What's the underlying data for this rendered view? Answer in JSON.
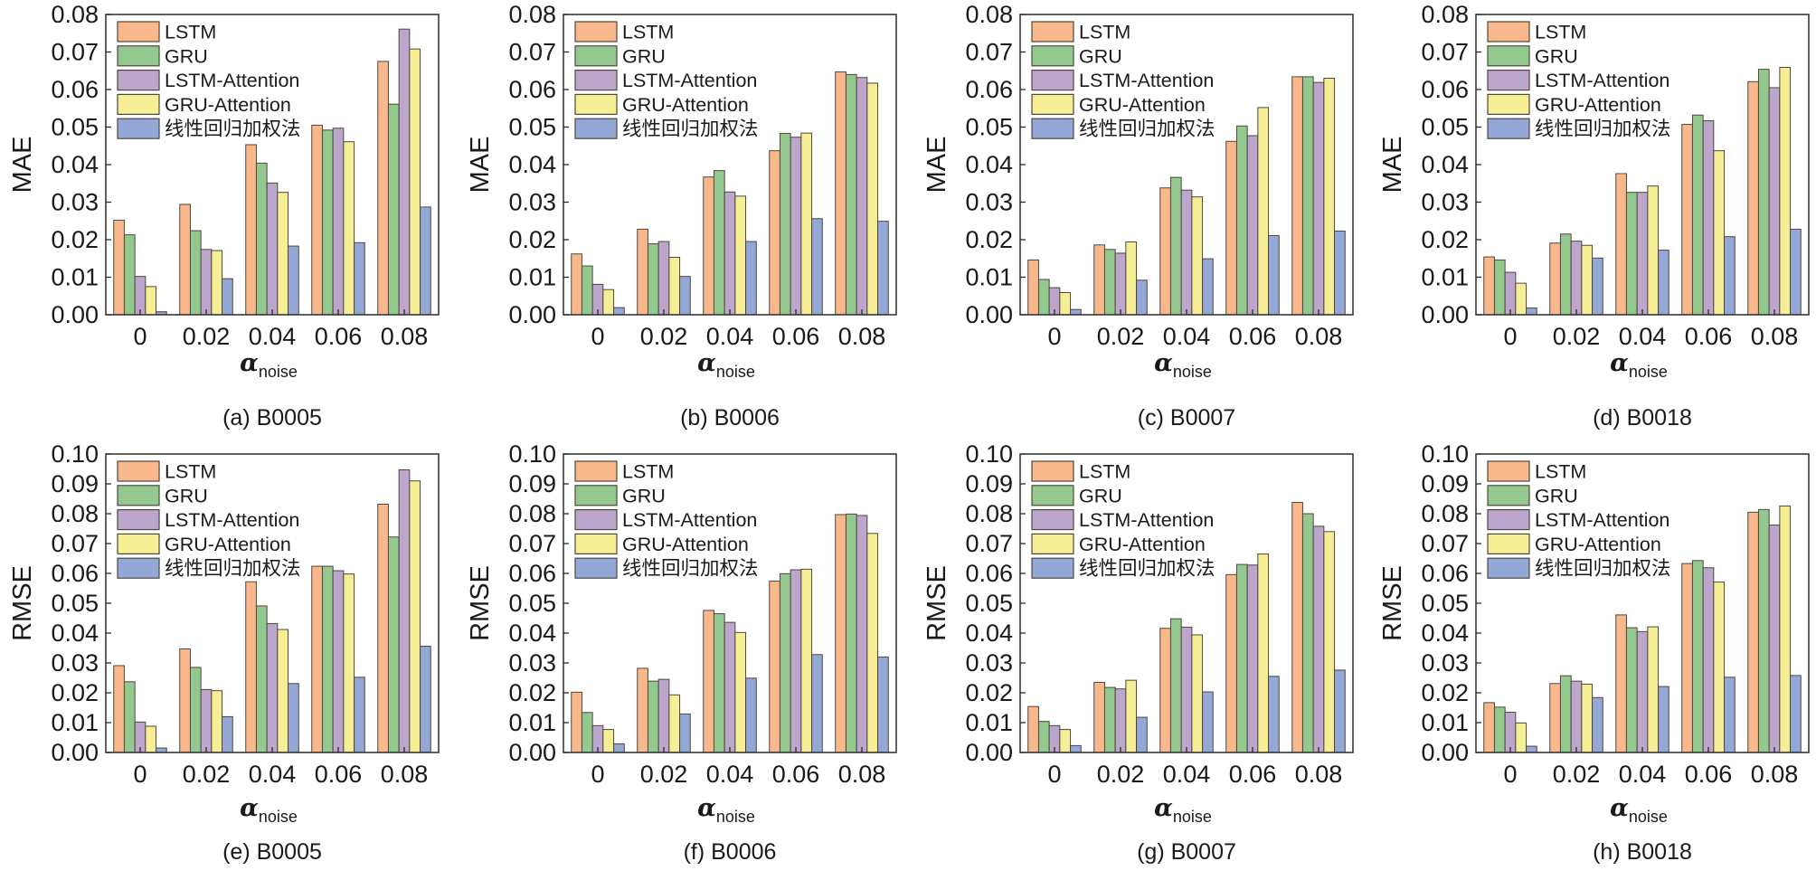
{
  "chart_data": [
    {
      "type": "bar",
      "panel_id": "a",
      "caption": "(a) B0005",
      "title": "",
      "ylabel": "MAE",
      "xlabel": {
        "symbol": "α",
        "subscript": "noise"
      },
      "ylim": [
        0,
        0.08
      ],
      "yticks": [
        "0.00",
        "0.01",
        "0.02",
        "0.03",
        "0.04",
        "0.05",
        "0.06",
        "0.07",
        "0.08"
      ],
      "categories": [
        "0",
        "0.02",
        "0.04",
        "0.06",
        "0.08"
      ],
      "legend_position": "top-left",
      "grid": false,
      "series": [
        {
          "name": "LSTM",
          "color": "#F8B88B",
          "values": [
            0.0252,
            0.0294,
            0.0453,
            0.0505,
            0.0675
          ]
        },
        {
          "name": "GRU",
          "color": "#93C98E",
          "values": [
            0.0213,
            0.0224,
            0.0404,
            0.0492,
            0.0561
          ]
        },
        {
          "name": "LSTM-Attention",
          "color": "#BCA6CC",
          "values": [
            0.0102,
            0.0174,
            0.0351,
            0.0497,
            0.0761
          ]
        },
        {
          "name": "GRU-Attention",
          "color": "#F6EE94",
          "values": [
            0.0075,
            0.0171,
            0.0326,
            0.0461,
            0.0708
          ]
        },
        {
          "name": "线性回归加权法",
          "color": "#93A8D6",
          "values": [
            0.0008,
            0.0096,
            0.0183,
            0.0192,
            0.0287
          ]
        }
      ]
    },
    {
      "type": "bar",
      "panel_id": "b",
      "caption": "(b) B0006",
      "title": "",
      "ylabel": "MAE",
      "xlabel": {
        "symbol": "α",
        "subscript": "noise"
      },
      "ylim": [
        0,
        0.08
      ],
      "yticks": [
        "0.00",
        "0.01",
        "0.02",
        "0.03",
        "0.04",
        "0.05",
        "0.06",
        "0.07",
        "0.08"
      ],
      "categories": [
        "0",
        "0.02",
        "0.04",
        "0.06",
        "0.08"
      ],
      "legend_position": "top-left",
      "grid": false,
      "series": [
        {
          "name": "LSTM",
          "color": "#F8B88B",
          "values": [
            0.0162,
            0.0228,
            0.0367,
            0.0437,
            0.0647
          ]
        },
        {
          "name": "GRU",
          "color": "#93C98E",
          "values": [
            0.013,
            0.0189,
            0.0384,
            0.0483,
            0.064
          ]
        },
        {
          "name": "LSTM-Attention",
          "color": "#BCA6CC",
          "values": [
            0.0081,
            0.0195,
            0.0327,
            0.0473,
            0.0632
          ]
        },
        {
          "name": "GRU-Attention",
          "color": "#F6EE94",
          "values": [
            0.0067,
            0.0153,
            0.0316,
            0.0484,
            0.0617
          ]
        },
        {
          "name": "线性回归加权法",
          "color": "#93A8D6",
          "values": [
            0.0019,
            0.0102,
            0.0195,
            0.0256,
            0.0249
          ]
        }
      ]
    },
    {
      "type": "bar",
      "panel_id": "c",
      "caption": "(c) B0007",
      "title": "",
      "ylabel": "MAE",
      "xlabel": {
        "symbol": "α",
        "subscript": "noise"
      },
      "ylim": [
        0,
        0.08
      ],
      "yticks": [
        "0.00",
        "0.01",
        "0.02",
        "0.03",
        "0.04",
        "0.05",
        "0.06",
        "0.07",
        "0.08"
      ],
      "categories": [
        "0",
        "0.02",
        "0.04",
        "0.06",
        "0.08"
      ],
      "legend_position": "top-left",
      "grid": false,
      "series": [
        {
          "name": "LSTM",
          "color": "#F8B88B",
          "values": [
            0.0146,
            0.0186,
            0.0338,
            0.0462,
            0.0634
          ]
        },
        {
          "name": "GRU",
          "color": "#93C98E",
          "values": [
            0.0094,
            0.0174,
            0.0366,
            0.0503,
            0.0634
          ]
        },
        {
          "name": "LSTM-Attention",
          "color": "#BCA6CC",
          "values": [
            0.0072,
            0.0164,
            0.0332,
            0.0477,
            0.0619
          ]
        },
        {
          "name": "GRU-Attention",
          "color": "#F6EE94",
          "values": [
            0.0059,
            0.0194,
            0.0314,
            0.0552,
            0.063
          ]
        },
        {
          "name": "线性回归加权法",
          "color": "#93A8D6",
          "values": [
            0.0014,
            0.0092,
            0.0149,
            0.0211,
            0.0223
          ]
        }
      ]
    },
    {
      "type": "bar",
      "panel_id": "d",
      "caption": "(d) B0018",
      "title": "",
      "ylabel": "MAE",
      "xlabel": {
        "symbol": "α",
        "subscript": "noise"
      },
      "ylim": [
        0,
        0.08
      ],
      "yticks": [
        "0.00",
        "0.01",
        "0.02",
        "0.03",
        "0.04",
        "0.05",
        "0.06",
        "0.07",
        "0.08"
      ],
      "categories": [
        "0",
        "0.02",
        "0.04",
        "0.06",
        "0.08"
      ],
      "legend_position": "top-left",
      "grid": false,
      "series": [
        {
          "name": "LSTM",
          "color": "#F8B88B",
          "values": [
            0.0154,
            0.0191,
            0.0376,
            0.0507,
            0.0621
          ]
        },
        {
          "name": "GRU",
          "color": "#93C98E",
          "values": [
            0.0146,
            0.0215,
            0.0326,
            0.0532,
            0.0654
          ]
        },
        {
          "name": "LSTM-Attention",
          "color": "#BCA6CC",
          "values": [
            0.0113,
            0.0196,
            0.0326,
            0.0517,
            0.0605
          ]
        },
        {
          "name": "GRU-Attention",
          "color": "#F6EE94",
          "values": [
            0.0084,
            0.0185,
            0.0343,
            0.0437,
            0.0659
          ]
        },
        {
          "name": "线性回归加权法",
          "color": "#93A8D6",
          "values": [
            0.0018,
            0.0151,
            0.0172,
            0.0208,
            0.0228
          ]
        }
      ]
    },
    {
      "type": "bar",
      "panel_id": "e",
      "caption": "(e) B0005",
      "title": "",
      "ylabel": "RMSE",
      "xlabel": {
        "symbol": "α",
        "subscript": "noise"
      },
      "ylim": [
        0,
        0.1
      ],
      "yticks": [
        "0.00",
        "0.01",
        "0.02",
        "0.03",
        "0.04",
        "0.05",
        "0.06",
        "0.07",
        "0.08",
        "0.09",
        "0.10"
      ],
      "categories": [
        "0",
        "0.02",
        "0.04",
        "0.06",
        "0.08"
      ],
      "legend_position": "top-left",
      "grid": false,
      "series": [
        {
          "name": "LSTM",
          "color": "#F8B88B",
          "values": [
            0.0291,
            0.0347,
            0.0572,
            0.0624,
            0.0832
          ]
        },
        {
          "name": "GRU",
          "color": "#93C98E",
          "values": [
            0.0237,
            0.0285,
            0.0491,
            0.0624,
            0.0722
          ]
        },
        {
          "name": "LSTM-Attention",
          "color": "#BCA6CC",
          "values": [
            0.0102,
            0.0211,
            0.0432,
            0.0609,
            0.0947
          ]
        },
        {
          "name": "GRU-Attention",
          "color": "#F6EE94",
          "values": [
            0.0088,
            0.0207,
            0.0412,
            0.0598,
            0.091
          ]
        },
        {
          "name": "线性回归加权法",
          "color": "#93A8D6",
          "values": [
            0.0015,
            0.012,
            0.0231,
            0.0252,
            0.0356
          ]
        }
      ]
    },
    {
      "type": "bar",
      "panel_id": "f",
      "caption": "(f) B0006",
      "title": "",
      "ylabel": "RMSE",
      "xlabel": {
        "symbol": "α",
        "subscript": "noise"
      },
      "ylim": [
        0,
        0.1
      ],
      "yticks": [
        "0.00",
        "0.01",
        "0.02",
        "0.03",
        "0.04",
        "0.05",
        "0.06",
        "0.07",
        "0.08",
        "0.09",
        "0.10"
      ],
      "categories": [
        "0",
        "0.02",
        "0.04",
        "0.06",
        "0.08"
      ],
      "legend_position": "top-left",
      "grid": false,
      "series": [
        {
          "name": "LSTM",
          "color": "#F8B88B",
          "values": [
            0.0202,
            0.0282,
            0.0476,
            0.0574,
            0.0797
          ]
        },
        {
          "name": "GRU",
          "color": "#93C98E",
          "values": [
            0.0134,
            0.0239,
            0.0465,
            0.0599,
            0.0799
          ]
        },
        {
          "name": "LSTM-Attention",
          "color": "#BCA6CC",
          "values": [
            0.009,
            0.0245,
            0.0436,
            0.0612,
            0.0794
          ]
        },
        {
          "name": "GRU-Attention",
          "color": "#F6EE94",
          "values": [
            0.0077,
            0.0193,
            0.0402,
            0.0614,
            0.0734
          ]
        },
        {
          "name": "线性回归加权法",
          "color": "#93A8D6",
          "values": [
            0.0029,
            0.0129,
            0.0249,
            0.0328,
            0.032
          ]
        }
      ]
    },
    {
      "type": "bar",
      "panel_id": "g",
      "caption": "(g) B0007",
      "title": "",
      "ylabel": "RMSE",
      "xlabel": {
        "symbol": "α",
        "subscript": "noise"
      },
      "ylim": [
        0,
        0.1
      ],
      "yticks": [
        "0.00",
        "0.01",
        "0.02",
        "0.03",
        "0.04",
        "0.05",
        "0.06",
        "0.07",
        "0.08",
        "0.09",
        "0.10"
      ],
      "categories": [
        "0",
        "0.02",
        "0.04",
        "0.06",
        "0.08"
      ],
      "legend_position": "top-left",
      "grid": false,
      "series": [
        {
          "name": "LSTM",
          "color": "#F8B88B",
          "values": [
            0.0154,
            0.0235,
            0.0416,
            0.0596,
            0.0838
          ]
        },
        {
          "name": "GRU",
          "color": "#93C98E",
          "values": [
            0.0104,
            0.0218,
            0.0448,
            0.063,
            0.08
          ]
        },
        {
          "name": "LSTM-Attention",
          "color": "#BCA6CC",
          "values": [
            0.009,
            0.0213,
            0.042,
            0.0628,
            0.0758
          ]
        },
        {
          "name": "GRU-Attention",
          "color": "#F6EE94",
          "values": [
            0.0077,
            0.0242,
            0.0394,
            0.0665,
            0.074
          ]
        },
        {
          "name": "线性回归加权法",
          "color": "#93A8D6",
          "values": [
            0.0023,
            0.0118,
            0.0203,
            0.0255,
            0.0276
          ]
        }
      ]
    },
    {
      "type": "bar",
      "panel_id": "h",
      "caption": "(h) B0018",
      "title": "",
      "ylabel": "RMSE",
      "xlabel": {
        "symbol": "α",
        "subscript": "noise"
      },
      "ylim": [
        0,
        0.1
      ],
      "yticks": [
        "0.00",
        "0.01",
        "0.02",
        "0.03",
        "0.04",
        "0.05",
        "0.06",
        "0.07",
        "0.08",
        "0.09",
        "0.10"
      ],
      "categories": [
        "0",
        "0.02",
        "0.04",
        "0.06",
        "0.08"
      ],
      "legend_position": "top-left",
      "grid": false,
      "series": [
        {
          "name": "LSTM",
          "color": "#F8B88B",
          "values": [
            0.0167,
            0.0231,
            0.0461,
            0.0633,
            0.0805
          ]
        },
        {
          "name": "GRU",
          "color": "#93C98E",
          "values": [
            0.0152,
            0.0257,
            0.0418,
            0.0643,
            0.0814
          ]
        },
        {
          "name": "LSTM-Attention",
          "color": "#BCA6CC",
          "values": [
            0.0135,
            0.0239,
            0.0405,
            0.0619,
            0.0762
          ]
        },
        {
          "name": "GRU-Attention",
          "color": "#F6EE94",
          "values": [
            0.0099,
            0.0229,
            0.0421,
            0.0571,
            0.0826
          ]
        },
        {
          "name": "线性回归加权法",
          "color": "#93A8D6",
          "values": [
            0.0021,
            0.0184,
            0.0221,
            0.0252,
            0.0258
          ]
        }
      ]
    }
  ]
}
